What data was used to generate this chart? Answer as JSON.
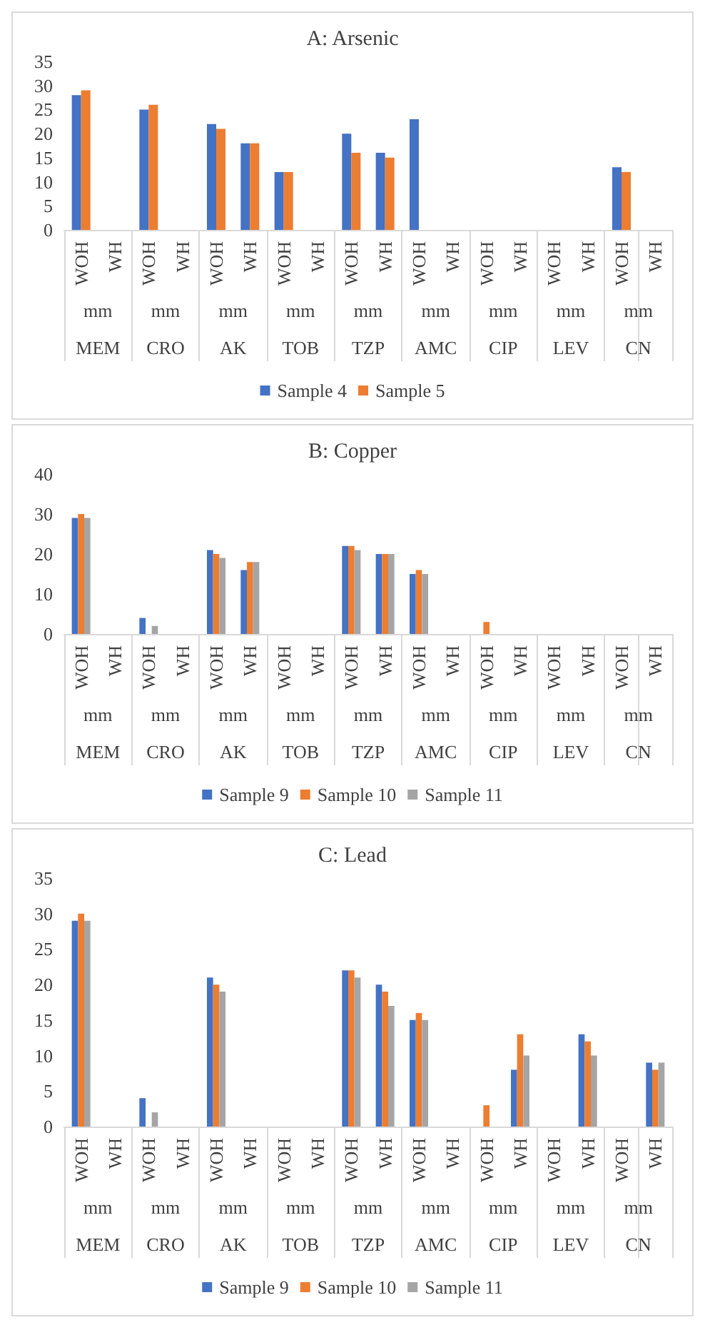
{
  "chart_data": [
    {
      "type": "bar",
      "title": "A: Arsenic",
      "categories": [
        "WOH",
        "WH",
        "WOH",
        "WH",
        "WOH",
        "WH",
        "WOH",
        "WH",
        "WOH",
        "WH",
        "WOH",
        "WH",
        "WOH",
        "WH",
        "WOH",
        "WH",
        "WOH",
        "WH"
      ],
      "annotations": [
        "mm",
        "MEM",
        "mm",
        "CRO",
        "mm",
        "AK",
        "mm",
        "TOB",
        "mm",
        "TZP",
        "mm",
        "AMC",
        "mm",
        "CIP",
        "mm",
        "LEV",
        "mm",
        "CN"
      ],
      "series": [
        {
          "name": "Sample 4",
          "color": "#4472c4",
          "values": [
            28,
            0,
            25,
            0,
            22,
            18,
            12,
            0,
            20,
            16,
            23,
            0,
            0,
            0,
            0,
            0,
            13,
            0
          ]
        },
        {
          "name": "Sample 5",
          "color": "#ed7d31",
          "values": [
            29,
            0,
            26,
            0,
            21,
            18,
            12,
            0,
            16,
            15,
            0,
            0,
            0,
            0,
            0,
            0,
            12,
            0
          ]
        }
      ],
      "ylim": [
        0,
        35
      ],
      "yticks": [
        0,
        5,
        10,
        15,
        20,
        25,
        30,
        35
      ],
      "grid": false,
      "legend": "bottom"
    },
    {
      "type": "bar",
      "title": "B: Copper",
      "categories": [
        "WOH",
        "WH",
        "WOH",
        "WH",
        "WOH",
        "WH",
        "WOH",
        "WH",
        "WOH",
        "WH",
        "WOH",
        "WH",
        "WOH",
        "WH",
        "WOH",
        "WH",
        "WOH",
        "WH"
      ],
      "annotations": [
        "mm",
        "MEM",
        "mm",
        "CRO",
        "mm",
        "AK",
        "mm",
        "TOB",
        "mm",
        "TZP",
        "mm",
        "AMC",
        "mm",
        "CIP",
        "mm",
        "LEV",
        "mm",
        "CN"
      ],
      "series": [
        {
          "name": "Sample 9",
          "color": "#4472c4",
          "values": [
            29,
            0,
            4,
            0,
            21,
            16,
            0,
            0,
            22,
            20,
            15,
            0,
            0,
            0,
            0,
            0,
            0,
            0
          ]
        },
        {
          "name": "Sample 10",
          "color": "#ed7d31",
          "values": [
            30,
            0,
            0,
            0,
            20,
            18,
            0,
            0,
            22,
            20,
            16,
            0,
            3,
            0,
            0,
            0,
            0,
            0
          ]
        },
        {
          "name": "Sample 11",
          "color": "#a5a5a5",
          "values": [
            29,
            0,
            2,
            0,
            19,
            18,
            0,
            0,
            21,
            20,
            15,
            0,
            0,
            0,
            0,
            0,
            0,
            0
          ]
        }
      ],
      "ylim": [
        0,
        40
      ],
      "yticks": [
        0,
        10,
        20,
        30,
        40
      ],
      "grid": false,
      "legend": "bottom"
    },
    {
      "type": "bar",
      "title": "C: Lead",
      "categories": [
        "WOH",
        "WH",
        "WOH",
        "WH",
        "WOH",
        "WH",
        "WOH",
        "WH",
        "WOH",
        "WH",
        "WOH",
        "WH",
        "WOH",
        "WH",
        "WOH",
        "WH",
        "WOH",
        "WH"
      ],
      "annotations": [
        "mm",
        "MEM",
        "mm",
        "CRO",
        "mm",
        "AK",
        "mm",
        "TOB",
        "mm",
        "TZP",
        "mm",
        "AMC",
        "mm",
        "CIP",
        "mm",
        "LEV",
        "mm",
        "CN"
      ],
      "series": [
        {
          "name": "Sample 9",
          "color": "#4472c4",
          "values": [
            29,
            0,
            4,
            0,
            21,
            0,
            0,
            0,
            22,
            20,
            15,
            0,
            0,
            8,
            0,
            13,
            0,
            9
          ]
        },
        {
          "name": "Sample 10",
          "color": "#ed7d31",
          "values": [
            30,
            0,
            0,
            0,
            20,
            0,
            0,
            0,
            22,
            19,
            16,
            0,
            3,
            13,
            0,
            12,
            0,
            8
          ]
        },
        {
          "name": "Sample 11",
          "color": "#a5a5a5",
          "values": [
            29,
            0,
            2,
            0,
            19,
            0,
            0,
            0,
            21,
            17,
            15,
            0,
            0,
            10,
            0,
            10,
            0,
            9
          ]
        }
      ],
      "ylim": [
        0,
        35
      ],
      "yticks": [
        0,
        5,
        10,
        15,
        20,
        25,
        30,
        35
      ],
      "grid": false,
      "legend": "bottom"
    }
  ]
}
